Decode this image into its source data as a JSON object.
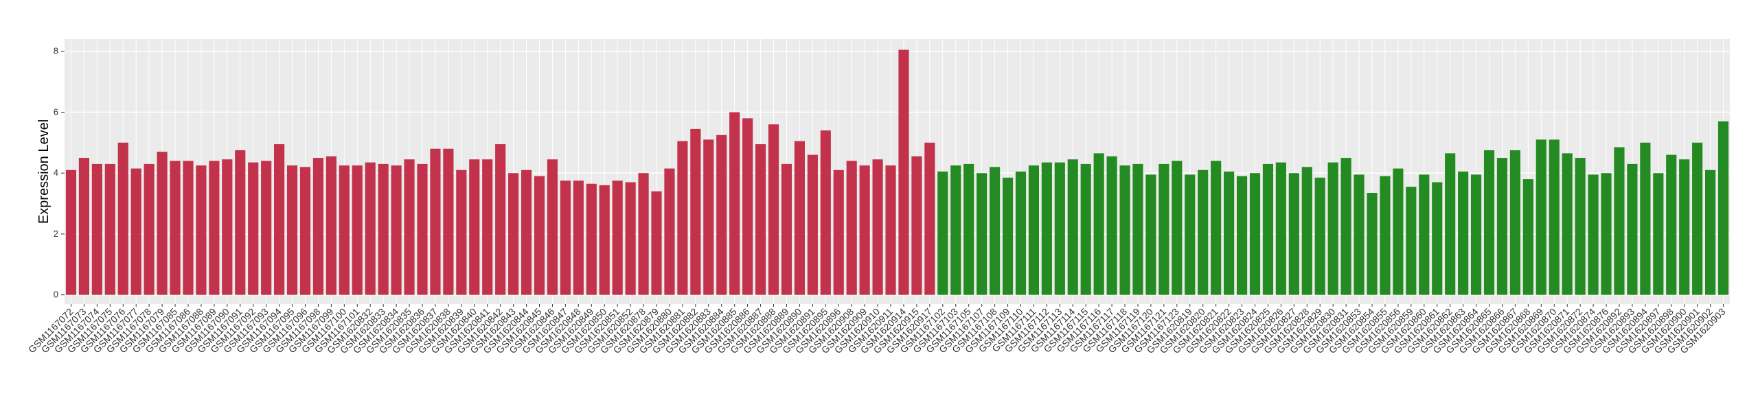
{
  "chart_data": {
    "type": "bar",
    "y_label": "Expression Level",
    "categories": [
      "GSM1167072",
      "GSM1167073",
      "GSM1167074",
      "GSM1167075",
      "GSM1167076",
      "GSM1167077",
      "GSM1167078",
      "GSM1167079",
      "GSM1167085",
      "GSM1167086",
      "GSM1167088",
      "GSM1167089",
      "GSM1167090",
      "GSM1167091",
      "GSM1167092",
      "GSM1167093",
      "GSM1167094",
      "GSM1167095",
      "GSM1167096",
      "GSM1167098",
      "GSM1167099",
      "GSM1167100",
      "GSM1167101",
      "GSM1620832",
      "GSM1620833",
      "GSM1620834",
      "GSM1620835",
      "GSM1620836",
      "GSM1620837",
      "GSM1620838",
      "GSM1620839",
      "GSM1620840",
      "GSM1620841",
      "GSM1620842",
      "GSM1620843",
      "GSM1620844",
      "GSM1620845",
      "GSM1620846",
      "GSM1620847",
      "GSM1620848",
      "GSM1620849",
      "GSM1620850",
      "GSM1620851",
      "GSM1620852",
      "GSM1620878",
      "GSM1620879",
      "GSM1620880",
      "GSM1620881",
      "GSM1620882",
      "GSM1620883",
      "GSM1620884",
      "GSM1620885",
      "GSM1620886",
      "GSM1620887",
      "GSM1620888",
      "GSM1620889",
      "GSM1620890",
      "GSM1620891",
      "GSM1620895",
      "GSM1620896",
      "GSM1620908",
      "GSM1620909",
      "GSM1620910",
      "GSM1620911",
      "GSM1620914",
      "GSM1620915",
      "GSM1620917",
      "GSM1167102",
      "GSM1167103",
      "GSM1167105",
      "GSM1167107",
      "GSM1167108",
      "GSM1167109",
      "GSM1167110",
      "GSM1167111",
      "GSM1167112",
      "GSM1167113",
      "GSM1167114",
      "GSM1167115",
      "GSM1167116",
      "GSM1167117",
      "GSM1167118",
      "GSM1167119",
      "GSM1167120",
      "GSM1167121",
      "GSM1167123",
      "GSM1620819",
      "GSM1620820",
      "GSM1620821",
      "GSM1620822",
      "GSM1620823",
      "GSM1620824",
      "GSM1620825",
      "GSM1620826",
      "GSM1620827",
      "GSM1620828",
      "GSM1620829",
      "GSM1620830",
      "GSM1620831",
      "GSM1620853",
      "GSM1620854",
      "GSM1620855",
      "GSM1620856",
      "GSM1620859",
      "GSM1620860",
      "GSM1620861",
      "GSM1620862",
      "GSM1620863",
      "GSM1620864",
      "GSM1620865",
      "GSM1620866",
      "GSM1620867",
      "GSM1620868",
      "GSM1620869",
      "GSM1620870",
      "GSM1620871",
      "GSM1620872",
      "GSM1620874",
      "GSM1620876",
      "GSM1620892",
      "GSM1620893",
      "GSM1620894",
      "GSM1620897",
      "GSM1620898",
      "GSM1620900",
      "GSM1620901",
      "GSM1620902",
      "GSM1620903"
    ],
    "values": [
      4.1,
      4.5,
      4.3,
      4.3,
      5.0,
      4.15,
      4.3,
      4.7,
      4.4,
      4.4,
      4.25,
      4.4,
      4.45,
      4.75,
      4.35,
      4.4,
      4.95,
      4.25,
      4.2,
      4.5,
      4.55,
      4.25,
      4.25,
      4.35,
      4.3,
      4.25,
      4.45,
      4.3,
      4.8,
      4.8,
      4.1,
      4.45,
      4.45,
      4.95,
      4.0,
      4.1,
      3.9,
      4.45,
      3.75,
      3.75,
      3.65,
      3.6,
      3.75,
      3.7,
      4.0,
      3.4,
      4.15,
      5.05,
      5.45,
      5.1,
      5.25,
      6.0,
      5.8,
      4.95,
      5.6,
      4.3,
      5.05,
      4.6,
      5.4,
      4.1,
      4.4,
      4.25,
      4.45,
      4.25,
      8.05,
      4.55,
      5.0,
      4.05,
      4.25,
      4.3,
      4.0,
      4.2,
      3.85,
      4.05,
      4.25,
      4.35,
      4.35,
      4.45,
      4.3,
      4.65,
      4.55,
      4.25,
      4.3,
      3.95,
      4.3,
      4.4,
      3.95,
      4.1,
      4.4,
      4.05,
      3.9,
      4.0,
      4.3,
      4.35,
      4.0,
      4.2,
      3.85,
      4.35,
      4.5,
      3.95,
      3.35,
      3.9,
      4.15,
      3.55,
      3.95,
      3.7,
      4.65,
      4.05,
      3.95,
      4.75,
      4.5,
      4.75,
      3.8,
      5.1,
      5.1,
      4.65,
      4.5,
      3.95,
      4.0,
      4.85,
      4.3,
      5.0,
      4.0,
      4.6,
      4.45,
      5.0,
      4.1,
      5.7
    ],
    "colors": [
      "#c2334b",
      "#c2334b",
      "#c2334b",
      "#c2334b",
      "#c2334b",
      "#c2334b",
      "#c2334b",
      "#c2334b",
      "#c2334b",
      "#c2334b",
      "#c2334b",
      "#c2334b",
      "#c2334b",
      "#c2334b",
      "#c2334b",
      "#c2334b",
      "#c2334b",
      "#c2334b",
      "#c2334b",
      "#c2334b",
      "#c2334b",
      "#c2334b",
      "#c2334b",
      "#c2334b",
      "#c2334b",
      "#c2334b",
      "#c2334b",
      "#c2334b",
      "#c2334b",
      "#c2334b",
      "#c2334b",
      "#c2334b",
      "#c2334b",
      "#c2334b",
      "#c2334b",
      "#c2334b",
      "#c2334b",
      "#c2334b",
      "#c2334b",
      "#c2334b",
      "#c2334b",
      "#c2334b",
      "#c2334b",
      "#c2334b",
      "#c2334b",
      "#c2334b",
      "#c2334b",
      "#c2334b",
      "#c2334b",
      "#c2334b",
      "#c2334b",
      "#c2334b",
      "#c2334b",
      "#c2334b",
      "#c2334b",
      "#c2334b",
      "#c2334b",
      "#c2334b",
      "#c2334b",
      "#c2334b",
      "#c2334b",
      "#c2334b",
      "#c2334b",
      "#c2334b",
      "#c2334b",
      "#c2334b",
      "#c2334b",
      "#238b22",
      "#238b22",
      "#238b22",
      "#238b22",
      "#238b22",
      "#238b22",
      "#238b22",
      "#238b22",
      "#238b22",
      "#238b22",
      "#238b22",
      "#238b22",
      "#238b22",
      "#238b22",
      "#238b22",
      "#238b22",
      "#238b22",
      "#238b22",
      "#238b22",
      "#238b22",
      "#238b22",
      "#238b22",
      "#238b22",
      "#238b22",
      "#238b22",
      "#238b22",
      "#238b22",
      "#238b22",
      "#238b22",
      "#238b22",
      "#238b22",
      "#238b22",
      "#238b22",
      "#238b22",
      "#238b22",
      "#238b22",
      "#238b22",
      "#238b22",
      "#238b22",
      "#238b22",
      "#238b22",
      "#238b22",
      "#238b22",
      "#238b22",
      "#238b22",
      "#238b22",
      "#238b22",
      "#238b22",
      "#238b22",
      "#238b22",
      "#238b22",
      "#238b22",
      "#238b22",
      "#238b22",
      "#238b22",
      "#238b22",
      "#238b22",
      "#238b22",
      "#238b22",
      "#238b22",
      "#238b22"
    ],
    "ylim": [
      -0.3,
      8.4
    ],
    "yticks": [
      0,
      2,
      4,
      6,
      8
    ],
    "grid": true
  }
}
